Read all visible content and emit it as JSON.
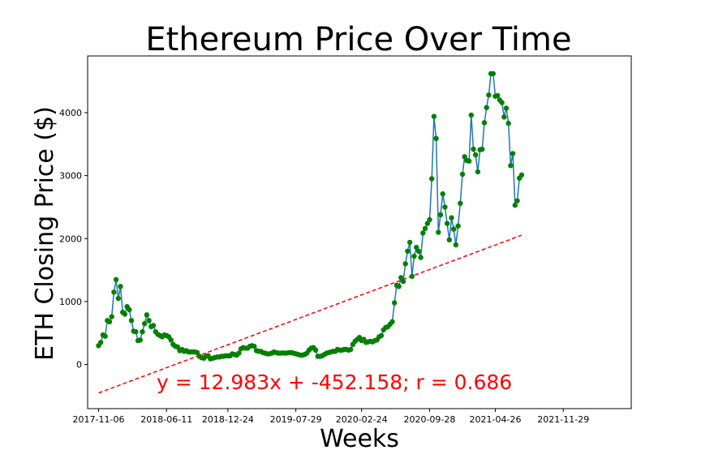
{
  "chart_data": {
    "type": "scatter",
    "title": "Ethereum Price Over Time",
    "xlabel": "Weeks",
    "ylabel": "ETH Closing Price ($)",
    "xlim": [
      -5,
      243
    ],
    "ylim": [
      -700,
      4900
    ],
    "x_tick_labels": [
      {
        "x": 0,
        "label": "2017-11-06"
      },
      {
        "x": 31,
        "label": "2018-06-11"
      },
      {
        "x": 59,
        "label": "2018-12-24"
      },
      {
        "x": 90,
        "label": "2019-07-29"
      },
      {
        "x": 120,
        "label": "2020-02-24"
      },
      {
        "x": 151,
        "label": "2020-09-28"
      },
      {
        "x": 181,
        "label": "2021-04-26"
      },
      {
        "x": 212,
        "label": "2021-11-29"
      }
    ],
    "y_ticks": [
      0,
      1000,
      2000,
      3000,
      4000
    ],
    "series": [
      {
        "marker_color": "#008000",
        "line_color": "#1f77b4",
        "points": [
          [
            0,
            300
          ],
          [
            1,
            350
          ],
          [
            2,
            470
          ],
          [
            3,
            450
          ],
          [
            4,
            700
          ],
          [
            5,
            680
          ],
          [
            6,
            760
          ],
          [
            7,
            1150
          ],
          [
            8,
            1350
          ],
          [
            9,
            1050
          ],
          [
            10,
            1240
          ],
          [
            11,
            830
          ],
          [
            12,
            800
          ],
          [
            13,
            920
          ],
          [
            14,
            870
          ],
          [
            15,
            700
          ],
          [
            16,
            530
          ],
          [
            17,
            520
          ],
          [
            18,
            380
          ],
          [
            19,
            390
          ],
          [
            20,
            520
          ],
          [
            21,
            650
          ],
          [
            22,
            790
          ],
          [
            23,
            700
          ],
          [
            24,
            600
          ],
          [
            25,
            620
          ],
          [
            26,
            520
          ],
          [
            27,
            480
          ],
          [
            28,
            460
          ],
          [
            29,
            440
          ],
          [
            30,
            470
          ],
          [
            31,
            460
          ],
          [
            32,
            440
          ],
          [
            33,
            390
          ],
          [
            34,
            320
          ],
          [
            35,
            290
          ],
          [
            36,
            280
          ],
          [
            37,
            220
          ],
          [
            38,
            240
          ],
          [
            39,
            210
          ],
          [
            40,
            220
          ],
          [
            41,
            200
          ],
          [
            42,
            200
          ],
          [
            43,
            200
          ],
          [
            44,
            200
          ],
          [
            45,
            190
          ],
          [
            46,
            130
          ],
          [
            47,
            110
          ],
          [
            48,
            100
          ],
          [
            49,
            130
          ],
          [
            50,
            140
          ],
          [
            51,
            90
          ],
          [
            52,
            100
          ],
          [
            53,
            110
          ],
          [
            54,
            120
          ],
          [
            55,
            120
          ],
          [
            56,
            130
          ],
          [
            57,
            130
          ],
          [
            58,
            140
          ],
          [
            59,
            140
          ],
          [
            60,
            140
          ],
          [
            61,
            170
          ],
          [
            62,
            160
          ],
          [
            63,
            150
          ],
          [
            64,
            180
          ],
          [
            65,
            250
          ],
          [
            66,
            270
          ],
          [
            67,
            260
          ],
          [
            68,
            260
          ],
          [
            69,
            290
          ],
          [
            70,
            300
          ],
          [
            71,
            290
          ],
          [
            72,
            220
          ],
          [
            73,
            210
          ],
          [
            74,
            210
          ],
          [
            75,
            190
          ],
          [
            76,
            180
          ],
          [
            77,
            170
          ],
          [
            78,
            170
          ],
          [
            79,
            180
          ],
          [
            80,
            200
          ],
          [
            81,
            190
          ],
          [
            82,
            180
          ],
          [
            83,
            180
          ],
          [
            84,
            185
          ],
          [
            85,
            180
          ],
          [
            86,
            185
          ],
          [
            87,
            190
          ],
          [
            88,
            190
          ],
          [
            89,
            180
          ],
          [
            90,
            170
          ],
          [
            91,
            160
          ],
          [
            92,
            150
          ],
          [
            93,
            150
          ],
          [
            94,
            160
          ],
          [
            95,
            180
          ],
          [
            96,
            230
          ],
          [
            97,
            260
          ],
          [
            98,
            270
          ],
          [
            99,
            230
          ],
          [
            100,
            130
          ],
          [
            101,
            130
          ],
          [
            102,
            140
          ],
          [
            103,
            160
          ],
          [
            104,
            180
          ],
          [
            105,
            190
          ],
          [
            106,
            200
          ],
          [
            107,
            210
          ],
          [
            108,
            210
          ],
          [
            109,
            240
          ],
          [
            110,
            230
          ],
          [
            111,
            230
          ],
          [
            112,
            240
          ],
          [
            113,
            240
          ],
          [
            114,
            230
          ],
          [
            115,
            240
          ],
          [
            116,
            320
          ],
          [
            117,
            370
          ],
          [
            118,
            400
          ],
          [
            119,
            430
          ],
          [
            120,
            380
          ],
          [
            121,
            400
          ],
          [
            122,
            350
          ],
          [
            123,
            360
          ],
          [
            124,
            370
          ],
          [
            125,
            360
          ],
          [
            126,
            380
          ],
          [
            127,
            390
          ],
          [
            128,
            440
          ],
          [
            129,
            460
          ],
          [
            130,
            550
          ],
          [
            131,
            590
          ],
          [
            132,
            600
          ],
          [
            133,
            640
          ],
          [
            134,
            680
          ],
          [
            135,
            980
          ],
          [
            136,
            1260
          ],
          [
            137,
            1240
          ],
          [
            138,
            1380
          ],
          [
            139,
            1320
          ],
          [
            140,
            1600
          ],
          [
            141,
            1800
          ],
          [
            142,
            1940
          ],
          [
            143,
            1400
          ],
          [
            144,
            1720
          ],
          [
            145,
            1860
          ],
          [
            146,
            1800
          ],
          [
            147,
            1700
          ],
          [
            148,
            2090
          ],
          [
            149,
            2160
          ],
          [
            150,
            2240
          ],
          [
            151,
            2300
          ],
          [
            152,
            2950
          ],
          [
            153,
            3940
          ],
          [
            154,
            3590
          ],
          [
            155,
            2100
          ],
          [
            156,
            2380
          ],
          [
            157,
            2710
          ],
          [
            158,
            2500
          ],
          [
            159,
            2240
          ],
          [
            160,
            1980
          ],
          [
            161,
            2330
          ],
          [
            162,
            2150
          ],
          [
            163,
            1900
          ],
          [
            164,
            2200
          ],
          [
            165,
            2560
          ],
          [
            166,
            3020
          ],
          [
            167,
            3300
          ],
          [
            168,
            3240
          ],
          [
            169,
            3230
          ],
          [
            170,
            3960
          ],
          [
            171,
            3420
          ],
          [
            172,
            3330
          ],
          [
            173,
            3060
          ],
          [
            174,
            3410
          ],
          [
            175,
            3420
          ],
          [
            176,
            3840
          ],
          [
            177,
            4080
          ],
          [
            178,
            4280
          ],
          [
            179,
            4620
          ],
          [
            180,
            4620
          ],
          [
            181,
            4260
          ],
          [
            182,
            4270
          ],
          [
            183,
            4200
          ],
          [
            184,
            4160
          ],
          [
            185,
            3930
          ],
          [
            186,
            4070
          ],
          [
            187,
            3830
          ],
          [
            188,
            3160
          ],
          [
            189,
            3350
          ],
          [
            190,
            2530
          ],
          [
            191,
            2600
          ],
          [
            192,
            2960
          ],
          [
            193,
            3010
          ]
        ]
      }
    ],
    "regression": {
      "slope": 12.983,
      "intercept": -452.158,
      "r": 0.686,
      "line_color": "#ff0000",
      "label": "y = 12.983x + -452.158;  r = 0.686"
    }
  }
}
